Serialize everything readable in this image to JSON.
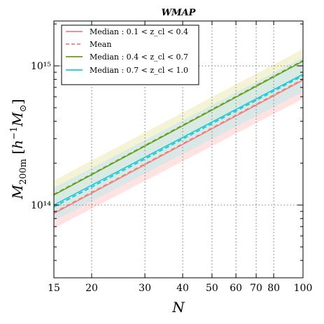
{
  "chart_data": {
    "type": "line",
    "title": "WMAP",
    "xlabel": "N",
    "ylabel": "M_200m [h^-1 M_⊙]",
    "xscale": "log",
    "yscale": "log",
    "xlim": [
      15,
      100
    ],
    "ylim": [
      30000000000000,
      2100000000000000
    ],
    "grid": true,
    "legend_position": "top-left",
    "x_ticks": [
      15,
      20,
      30,
      40,
      50,
      60,
      70,
      80,
      100
    ],
    "x_tick_labels": [
      "15",
      "20",
      "30",
      "40",
      "50",
      "60",
      "70",
      "80",
      "100"
    ],
    "y_ticks": [
      100000000000000,
      1000000000000000
    ],
    "y_tick_labels": [
      "10¹⁴",
      "10¹⁵"
    ],
    "series": [
      {
        "name": "Median :  0.1 < z_cl < 0.4",
        "color": "#f08080",
        "style": "solid",
        "x": [
          15,
          100
        ],
        "y": [
          87000000000000,
          790000000000000
        ],
        "band_lower": [
          68000000000000,
          580000000000000
        ],
        "band_upper": [
          112000000000000,
          1070000000000000
        ]
      },
      {
        "name": "Mean",
        "color": "#f08080",
        "style": "dashed",
        "x": [
          15,
          100
        ],
        "y": [
          88000000000000,
          800000000000000
        ]
      },
      {
        "name": "Median :  0.4 < z_cl < 0.7",
        "color": "#6b9e1f",
        "style": "solid",
        "x": [
          15,
          100
        ],
        "y": [
          118000000000000,
          1080000000000000
        ],
        "band_lower": [
          90000000000000,
          800000000000000
        ],
        "band_upper": [
          150000000000000,
          1320000000000000
        ]
      },
      {
        "name": "Mean",
        "color": "#6b9e1f",
        "style": "dashed",
        "x": [
          15,
          100
        ],
        "y": [
          119000000000000,
          1090000000000000
        ]
      },
      {
        "name": "Median :  0.7 < z_cl < 1.0",
        "color": "#1ec8d8",
        "style": "solid",
        "x": [
          15,
          100
        ],
        "y": [
          100000000000000,
          870000000000000
        ],
        "band_lower": [
          77000000000000,
          650000000000000
        ],
        "band_upper": [
          133000000000000,
          1150000000000000
        ]
      },
      {
        "name": "Mean",
        "color": "#1ec8d8",
        "style": "dashed",
        "x": [
          15,
          100
        ],
        "y": [
          97000000000000,
          850000000000000
        ]
      }
    ],
    "legend": [
      {
        "label": "Median :  0.1 < z_cl < 0.4",
        "color": "#f08080",
        "style": "solid"
      },
      {
        "label": "Mean",
        "color": "#f08080",
        "style": "dashed"
      },
      {
        "label": "Median :  0.4 < z_cl < 0.7",
        "color": "#6b9e1f",
        "style": "solid"
      },
      {
        "label": "Median :  0.7 < z_cl < 1.0",
        "color": "#1ec8d8",
        "style": "solid"
      }
    ]
  },
  "band_colors": {
    "red": "#ffdcdc",
    "green": "#f3f0cc",
    "cyan": "#cfe8e8"
  }
}
